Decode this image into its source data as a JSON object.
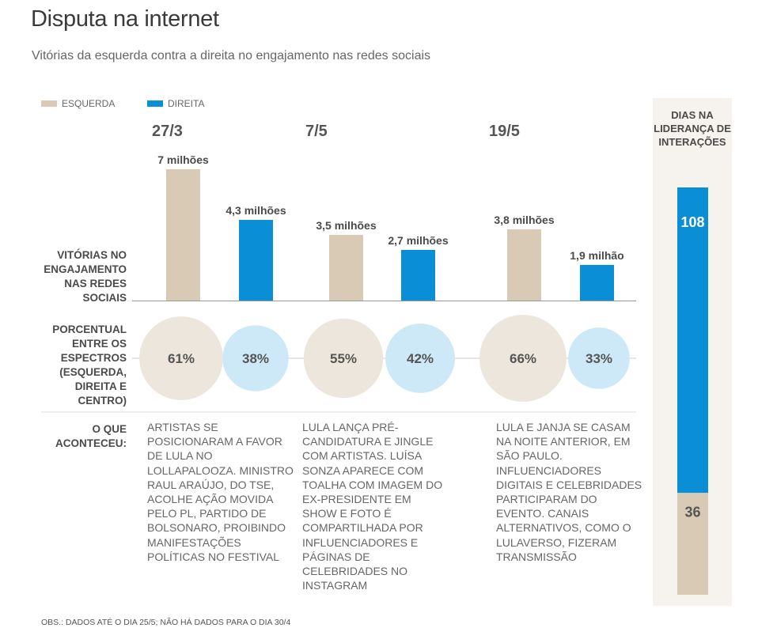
{
  "title": "Disputa na internet",
  "subtitle": "Vitórias da esquerda contra a direita no engajamento nas redes sociais",
  "legend": [
    {
      "label": "ESQUERDA",
      "color": "#d9cab5"
    },
    {
      "label": "DIREITA",
      "color": "#0a8fd6"
    }
  ],
  "row_labels": {
    "engagement": "VITÓRIAS NO ENGAJAMENTO NAS REDES SOCIAIS",
    "percent": "PORCENTUAL ENTRE OS ESPECTROS (ESQUERDA, DIREITA E CENTRO)",
    "events": "O QUE ACONTECEU:"
  },
  "sidebar": {
    "title": "DIAS NA LIDERANÇA DE INTERAÇÕES",
    "direita": 108,
    "esquerda": 36
  },
  "note": "OBS.: DADOS ATÉ O DIA 25/5; NÃO HÁ DADOS PARA O DIA 30/4",
  "chart_data": [
    {
      "type": "bar",
      "title": "",
      "categories": [
        "27/3",
        "7/5",
        "19/5"
      ],
      "series": [
        {
          "name": "ESQUERDA",
          "values": [
            7,
            3.5,
            3.8
          ],
          "labels": [
            "7 milhões",
            "3,5 milhões",
            "3,8 milhões"
          ],
          "color": "#d9cab5"
        },
        {
          "name": "DIREITA",
          "values": [
            4.3,
            2.7,
            1.9
          ],
          "labels": [
            "4,3 milhões",
            "2,7 milhões",
            "1,9 milhão"
          ],
          "color": "#0a8fd6"
        }
      ],
      "ylabel": "",
      "ylim": [
        0,
        7.5
      ]
    },
    {
      "type": "scatter",
      "title": "",
      "categories": [
        "27/3",
        "7/5",
        "19/5"
      ],
      "series": [
        {
          "name": "ESQUERDA",
          "values": [
            61,
            55,
            66
          ],
          "labels": [
            "61%",
            "55%",
            "66%"
          ],
          "color": "#ede6dd"
        },
        {
          "name": "DIREITA",
          "values": [
            38,
            42,
            33
          ],
          "labels": [
            "38%",
            "42%",
            "33%"
          ],
          "color": "#cde9f7"
        }
      ]
    },
    {
      "type": "bar",
      "title": "",
      "categories": [
        "DIAS NA LIDERANÇA DE INTERAÇÕES"
      ],
      "series": [
        {
          "name": "DIREITA",
          "values": [
            108
          ],
          "color": "#0a8fd6"
        },
        {
          "name": "ESQUERDA",
          "values": [
            36
          ],
          "color": "#d9cab5"
        }
      ]
    }
  ],
  "events": [
    "ARTISTAS SE POSICIONARAM A FAVOR DE LULA NO LOLLAPALOOZA. MINISTRO RAUL ARAÚJO, DO TSE, ACOLHE AÇÃO MOVIDA PELO PL, PARTIDO DE BOLSONARO, PROIBINDO MANIFESTAÇÕES POLÍTICAS NO FESTIVAL",
    "LULA LANÇA PRÉ-CANDIDATURA E JINGLE COM ARTISTAS. LUÍSA SONZA APARECE COM TOALHA COM IMAGEM DO EX-PRESIDENTE EM SHOW E FOTO É COMPARTILHADA POR INFLUENCIADORES E PÁGINAS DE CELEBRIDADES NO INSTAGRAM",
    "LULA E JANJA SE CASAM NA NOITE ANTERIOR, EM SÃO PAULO. INFLUENCIADORES DIGITAIS E CELEBRIDADES PARTICIPARAM DO EVENTO. CANAIS ALTERNATIVOS, COMO O LULAVERSO, FIZERAM TRANSMISSÃO"
  ]
}
